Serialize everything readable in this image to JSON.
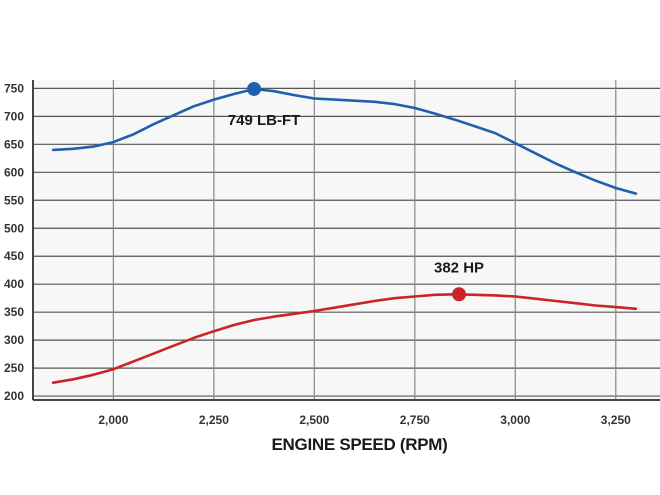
{
  "chart_data": {
    "type": "line",
    "xlabel": "ENGINE SPEED (RPM)",
    "xlim": [
      1800,
      3360
    ],
    "ylim": [
      193,
      765
    ],
    "x_ticks": [
      2000,
      2250,
      2500,
      2750,
      3000,
      3250
    ],
    "x_tick_labels": [
      "2,000",
      "2,250",
      "2,500",
      "2,750",
      "3,000",
      "3,250"
    ],
    "y_ticks": [
      200,
      250,
      300,
      350,
      400,
      450,
      500,
      550,
      600,
      650,
      700,
      750
    ],
    "y_tick_labels": [
      "200",
      "250",
      "300",
      "350",
      "400",
      "450",
      "500",
      "550",
      "600",
      "650",
      "700",
      "750"
    ],
    "grid": true,
    "series": [
      {
        "color": "#1f5fae",
        "x": [
          1850,
          1900,
          1950,
          2000,
          2050,
          2100,
          2150,
          2200,
          2250,
          2300,
          2350,
          2400,
          2450,
          2500,
          2550,
          2600,
          2650,
          2700,
          2750,
          2800,
          2850,
          2900,
          2950,
          3000,
          3050,
          3100,
          3150,
          3200,
          3250,
          3300
        ],
        "y": [
          640,
          642,
          646,
          654,
          668,
          686,
          702,
          718,
          730,
          740,
          749,
          745,
          738,
          732,
          730,
          728,
          726,
          722,
          715,
          705,
          694,
          682,
          670,
          652,
          634,
          616,
          600,
          585,
          572,
          562
        ]
      },
      {
        "color": "#cc2229",
        "x": [
          1850,
          1900,
          1950,
          2000,
          2050,
          2100,
          2150,
          2200,
          2250,
          2300,
          2350,
          2400,
          2450,
          2500,
          2550,
          2600,
          2650,
          2700,
          2750,
          2800,
          2850,
          2900,
          2950,
          3000,
          3050,
          3100,
          3150,
          3200,
          3250,
          3300
        ],
        "y": [
          224,
          230,
          238,
          248,
          262,
          276,
          290,
          304,
          316,
          327,
          336,
          342,
          347,
          352,
          358,
          364,
          370,
          375,
          378,
          381,
          382,
          381,
          380,
          378,
          374,
          370,
          366,
          362,
          359,
          356
        ]
      }
    ],
    "annotations": [
      {
        "text": "749 LB-FT",
        "x": 2350,
        "y": 749,
        "series": 0
      },
      {
        "text": "382 HP",
        "x": 2860,
        "y": 382,
        "series": 1
      }
    ]
  }
}
